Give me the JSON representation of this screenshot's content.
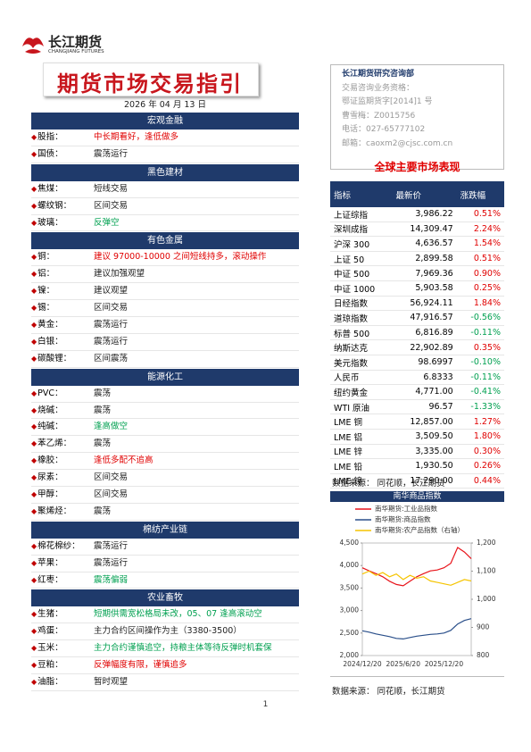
{
  "logo": {
    "name": "长江期货",
    "english": "CHANGJIANG FUTURES"
  },
  "header": {
    "title": "期货市场交易指引",
    "date": "2026 年 04 月 13 日"
  },
  "sections": [
    {
      "title": "宏观金融",
      "rows": [
        {
          "name": "股指：",
          "text": "中长期看好，逢低做多",
          "color": "red"
        },
        {
          "name": "国债：",
          "text": "震荡运行",
          "color": "black"
        }
      ]
    },
    {
      "title": "黑色建材",
      "rows": [
        {
          "name": "焦煤：",
          "text": "短线交易",
          "color": "black"
        },
        {
          "name": "螺纹钢：",
          "text": "区间交易",
          "color": "black"
        },
        {
          "name": "玻璃：",
          "text": "反弹空",
          "color": "green"
        }
      ]
    },
    {
      "title": "有色金属",
      "rows": [
        {
          "name": "铜：",
          "text": "建议 97000-10000 之间短线持多，滚动操作",
          "color": "red"
        },
        {
          "name": "铝：",
          "text": "建议加强观望",
          "color": "black"
        },
        {
          "name": "镍：",
          "text": "建议观望",
          "color": "black"
        },
        {
          "name": "锡：",
          "text": "区间交易",
          "color": "black"
        },
        {
          "name": "黄金：",
          "text": "震荡运行",
          "color": "black"
        },
        {
          "name": "白银：",
          "text": "震荡运行",
          "color": "black"
        },
        {
          "name": "碳酸锂：",
          "text": "区间震荡",
          "color": "black"
        }
      ]
    },
    {
      "title": "能源化工",
      "rows": [
        {
          "name": "PVC：",
          "text": "震荡",
          "color": "black"
        },
        {
          "name": "烧碱：",
          "text": "震荡",
          "color": "black"
        },
        {
          "name": "纯碱：",
          "text": "逢高做空",
          "color": "green"
        },
        {
          "name": "苯乙烯：",
          "text": "震荡",
          "color": "black"
        },
        {
          "name": "橡胶：",
          "text": "逢低多配不追高",
          "color": "red"
        },
        {
          "name": "尿素：",
          "text": "区间交易",
          "color": "black"
        },
        {
          "name": "甲醇：",
          "text": "区间交易",
          "color": "black"
        },
        {
          "name": "聚烯烃：",
          "text": "震荡",
          "color": "black"
        }
      ]
    },
    {
      "title": "棉纺产业链",
      "rows": [
        {
          "name": "棉花棉纱：",
          "text": "震荡运行",
          "color": "black"
        },
        {
          "name": "苹果：",
          "text": "震荡运行",
          "color": "black"
        },
        {
          "name": "红枣：",
          "text": "震荡偏弱",
          "color": "green"
        }
      ]
    },
    {
      "title": "农业畜牧",
      "rows": [
        {
          "name": "生猪：",
          "text": "短期供需宽松格局未改，05、07 逢高滚动空",
          "color": "green"
        },
        {
          "name": "鸡蛋：",
          "text": "主力合约区间操作为主（3380-3500）",
          "color": "black"
        },
        {
          "name": "玉米：",
          "text": "主力合约谨慎追空，持粮主体等待反弹时机套保",
          "color": "green"
        },
        {
          "name": "豆粕：",
          "text": "反弹幅度有限，谨慎追多",
          "color": "red"
        },
        {
          "name": "油脂：",
          "text": "暂时观望",
          "color": "black"
        }
      ]
    }
  ],
  "contact": {
    "department": "长江期货研究咨询部",
    "lines": [
      "交易咨询业务资格：",
      "鄂证监期货字[2014]1 号",
      "曹雪梅：Z0015756",
      "电话：027-65777102",
      "邮箱：caoxm2@cjsc.com.cn"
    ]
  },
  "market": {
    "title": "全球主要市场表现",
    "columns": [
      "指标",
      "最新价",
      "涨跌幅"
    ],
    "rows": [
      [
        "上证综指",
        "3,986.22",
        "0.51%"
      ],
      [
        "深圳成指",
        "14,309.47",
        "2.24%"
      ],
      [
        "沪深 300",
        "4,636.57",
        "1.54%"
      ],
      [
        "上证 50",
        "2,899.58",
        "0.51%"
      ],
      [
        "中证 500",
        "7,969.36",
        "0.90%"
      ],
      [
        "中证 1000",
        "5,903.58",
        "0.25%"
      ],
      [
        "日经指数",
        "56,924.11",
        "1.84%"
      ],
      [
        "道琼指数",
        "47,916.57",
        "-0.56%"
      ],
      [
        "标普 500",
        "6,816.89",
        "-0.11%"
      ],
      [
        "纳斯达克",
        "22,902.89",
        "0.35%"
      ],
      [
        "美元指数",
        "98.6997",
        "-0.10%"
      ],
      [
        "人民币",
        "6.8333",
        "-0.11%"
      ],
      [
        "纽约黄金",
        "4,771.00",
        "-0.41%"
      ],
      [
        "WTI 原油",
        "96.57",
        "-1.33%"
      ],
      [
        "LME 铜",
        "12,857.00",
        "1.27%"
      ],
      [
        "LME 铝",
        "3,509.50",
        "1.80%"
      ],
      [
        "LME 锌",
        "3,335.00",
        "0.30%"
      ],
      [
        "LME 铅",
        "1,930.50",
        "0.26%"
      ],
      [
        "LME 镍",
        "17,290.00",
        "0.44%"
      ]
    ],
    "source": "数据来源：  同花顺，长江期货"
  },
  "chart_data": {
    "type": "line",
    "title": "南华商品指数",
    "categories": [
      "2024/12/20",
      null,
      null,
      null,
      null,
      null,
      "2025/6/20",
      null,
      null,
      null,
      null,
      null,
      "2025/12/20",
      null,
      null,
      null,
      null
    ],
    "series": [
      {
        "name": "南华期货:工业品指数",
        "color": "#e8141b",
        "values": [
          3950,
          3880,
          3820,
          3750,
          3650,
          3580,
          3550,
          3650,
          3750,
          3820,
          3880,
          3900,
          3950,
          4050,
          4400,
          4300,
          4150
        ]
      },
      {
        "name": "南华期货:商品指数",
        "color": "#2a4f8a",
        "values": [
          2550,
          2520,
          2480,
          2450,
          2420,
          2380,
          2370,
          2400,
          2430,
          2450,
          2470,
          2480,
          2500,
          2560,
          2700,
          2780,
          2820
        ]
      },
      {
        "name": "南华期货:农产品指数（右轴）",
        "color": "#f5c400",
        "axis": "y2",
        "values": [
          1090,
          1100,
          1085,
          1095,
          1080,
          1090,
          1070,
          1085,
          1075,
          1080,
          1065,
          1060,
          1055,
          1050,
          1060,
          1070,
          1065
        ]
      }
    ],
    "ylim": [
      2000,
      4500
    ],
    "yticks": [
      {
        "value": 2000,
        "label": "2,000"
      },
      {
        "value": 2500,
        "label": "2,500"
      },
      {
        "value": 3000,
        "label": "3,000"
      },
      {
        "value": 3500,
        "label": "3,500"
      },
      {
        "value": 4000,
        "label": "4,000"
      },
      {
        "value": 4500,
        "label": "4,500"
      }
    ],
    "y2lim": [
      800,
      1200
    ],
    "y2ticks": [
      800,
      900,
      {
        "value": 1000,
        "label": "1,000"
      },
      {
        "value": 1100,
        "label": "1,100"
      },
      {
        "value": 1200,
        "label": "1,200"
      }
    ],
    "source": "数据来源：  同花顺，长江期货"
  },
  "page_number": "1"
}
